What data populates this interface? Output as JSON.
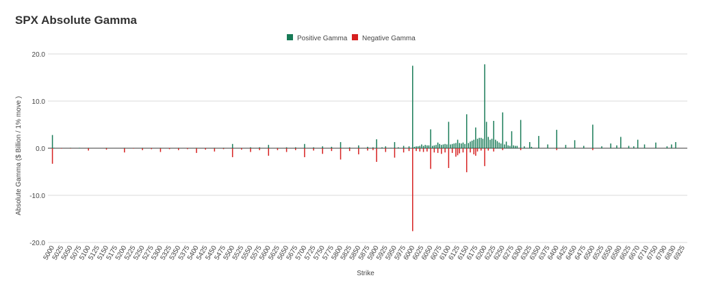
{
  "chart_data": {
    "type": "bar",
    "title": "SPX Absolute Gamma",
    "xlabel": "Strike",
    "ylabel": "Absolute Gamma ($ Billion / 1% move )",
    "ylim": [
      -20,
      20
    ],
    "yticks": [
      "20.0",
      "10.0",
      "0.0",
      "-10.0",
      "-20.0"
    ],
    "ytick_values": [
      20,
      10,
      0,
      -10,
      -20
    ],
    "grid": true,
    "legend_position": "top-center",
    "xtick_labels": [
      "5000",
      "5025",
      "5050",
      "5075",
      "5100",
      "5125",
      "5150",
      "5175",
      "5200",
      "5225",
      "5250",
      "5275",
      "5300",
      "5325",
      "5350",
      "5375",
      "5400",
      "5425",
      "5450",
      "5475",
      "5500",
      "5525",
      "5550",
      "5575",
      "5600",
      "5625",
      "5650",
      "5675",
      "5700",
      "5725",
      "5750",
      "5775",
      "5800",
      "5825",
      "5850",
      "5875",
      "5900",
      "5925",
      "5950",
      "5975",
      "6000",
      "6025",
      "6050",
      "6075",
      "6100",
      "6125",
      "6150",
      "6175",
      "6200",
      "6225",
      "6250",
      "6275",
      "6300",
      "6325",
      "6350",
      "6375",
      "6400",
      "6425",
      "6450",
      "6475",
      "6500",
      "6525",
      "6550",
      "6580",
      "6625",
      "6670",
      "6710",
      "6750",
      "6790",
      "6830",
      "6925"
    ],
    "series": [
      {
        "name": "Positive Gamma",
        "color": "#177a56",
        "values": [
          [
            5000,
            2.8
          ],
          [
            5005,
            0.1
          ],
          [
            5050,
            0.1
          ],
          [
            5075,
            0.1
          ],
          [
            5100,
            0.1
          ],
          [
            5150,
            0.1
          ],
          [
            5200,
            0.1
          ],
          [
            5250,
            0.1
          ],
          [
            5300,
            0.1
          ],
          [
            5350,
            0.1
          ],
          [
            5400,
            0.1
          ],
          [
            5450,
            0.1
          ],
          [
            5475,
            0.1
          ],
          [
            5500,
            0.9
          ],
          [
            5550,
            0.2
          ],
          [
            5575,
            0.2
          ],
          [
            5600,
            0.7
          ],
          [
            5625,
            0.1
          ],
          [
            5650,
            0.2
          ],
          [
            5675,
            0.2
          ],
          [
            5700,
            0.9
          ],
          [
            5725,
            0.2
          ],
          [
            5750,
            0.4
          ],
          [
            5775,
            0.3
          ],
          [
            5800,
            1.3
          ],
          [
            5825,
            0.2
          ],
          [
            5850,
            0.6
          ],
          [
            5875,
            0.3
          ],
          [
            5890,
            0.2
          ],
          [
            5900,
            1.9
          ],
          [
            5915,
            0.2
          ],
          [
            5925,
            0.4
          ],
          [
            5940,
            0.1
          ],
          [
            5950,
            1.3
          ],
          [
            5960,
            0.2
          ],
          [
            5975,
            0.5
          ],
          [
            5980,
            0.1
          ],
          [
            5990,
            0.4
          ],
          [
            6000,
            17.5
          ],
          [
            6005,
            0.3
          ],
          [
            6010,
            0.4
          ],
          [
            6015,
            0.4
          ],
          [
            6020,
            0.5
          ],
          [
            6025,
            0.8
          ],
          [
            6030,
            0.5
          ],
          [
            6035,
            0.7
          ],
          [
            6040,
            0.6
          ],
          [
            6045,
            0.6
          ],
          [
            6050,
            4.0
          ],
          [
            6055,
            0.5
          ],
          [
            6060,
            0.6
          ],
          [
            6065,
            0.7
          ],
          [
            6070,
            1.2
          ],
          [
            6075,
            0.9
          ],
          [
            6080,
            0.7
          ],
          [
            6085,
            0.8
          ],
          [
            6090,
            0.9
          ],
          [
            6095,
            0.8
          ],
          [
            6100,
            5.6
          ],
          [
            6105,
            0.8
          ],
          [
            6110,
            0.9
          ],
          [
            6115,
            1.0
          ],
          [
            6120,
            1.1
          ],
          [
            6125,
            1.8
          ],
          [
            6130,
            1.1
          ],
          [
            6135,
            1.0
          ],
          [
            6140,
            1.2
          ],
          [
            6145,
            0.9
          ],
          [
            6150,
            7.2
          ],
          [
            6155,
            1.1
          ],
          [
            6160,
            1.4
          ],
          [
            6165,
            1.6
          ],
          [
            6170,
            1.8
          ],
          [
            6175,
            4.4
          ],
          [
            6180,
            2.0
          ],
          [
            6185,
            2.2
          ],
          [
            6190,
            2.2
          ],
          [
            6195,
            2.0
          ],
          [
            6200,
            17.8
          ],
          [
            6205,
            5.6
          ],
          [
            6210,
            2.4
          ],
          [
            6215,
            1.8
          ],
          [
            6220,
            2.0
          ],
          [
            6225,
            5.8
          ],
          [
            6230,
            1.8
          ],
          [
            6235,
            1.5
          ],
          [
            6240,
            1.2
          ],
          [
            6245,
            1.0
          ],
          [
            6250,
            7.6
          ],
          [
            6255,
            0.8
          ],
          [
            6260,
            1.4
          ],
          [
            6265,
            0.6
          ],
          [
            6270,
            0.5
          ],
          [
            6275,
            3.6
          ],
          [
            6280,
            0.6
          ],
          [
            6285,
            0.5
          ],
          [
            6290,
            0.5
          ],
          [
            6300,
            6.0
          ],
          [
            6310,
            0.4
          ],
          [
            6325,
            1.3
          ],
          [
            6330,
            0.3
          ],
          [
            6350,
            2.6
          ],
          [
            6375,
            0.8
          ],
          [
            6400,
            3.9
          ],
          [
            6425,
            0.7
          ],
          [
            6450,
            1.7
          ],
          [
            6475,
            0.5
          ],
          [
            6500,
            5.0
          ],
          [
            6525,
            0.4
          ],
          [
            6550,
            1.0
          ],
          [
            6570,
            0.6
          ],
          [
            6585,
            2.4
          ],
          [
            6625,
            0.5
          ],
          [
            6650,
            0.4
          ],
          [
            6670,
            1.8
          ],
          [
            6700,
            0.8
          ],
          [
            6750,
            1.2
          ],
          [
            6800,
            0.4
          ],
          [
            6820,
            0.8
          ],
          [
            6850,
            1.3
          ]
        ]
      },
      {
        "name": "Negative Gamma",
        "color": "#d61f1f",
        "values": [
          [
            5000,
            -3.3
          ],
          [
            5025,
            -0.1
          ],
          [
            5050,
            -0.1
          ],
          [
            5100,
            -0.5
          ],
          [
            5150,
            -0.3
          ],
          [
            5200,
            -0.9
          ],
          [
            5225,
            -0.1
          ],
          [
            5250,
            -0.4
          ],
          [
            5275,
            -0.2
          ],
          [
            5300,
            -0.8
          ],
          [
            5325,
            -0.2
          ],
          [
            5350,
            -0.4
          ],
          [
            5375,
            -0.2
          ],
          [
            5400,
            -1.0
          ],
          [
            5425,
            -0.3
          ],
          [
            5450,
            -0.7
          ],
          [
            5475,
            -0.2
          ],
          [
            5500,
            -1.9
          ],
          [
            5525,
            -0.3
          ],
          [
            5550,
            -0.8
          ],
          [
            5575,
            -0.4
          ],
          [
            5600,
            -1.6
          ],
          [
            5625,
            -0.4
          ],
          [
            5650,
            -0.8
          ],
          [
            5675,
            -0.4
          ],
          [
            5700,
            -1.9
          ],
          [
            5725,
            -0.5
          ],
          [
            5750,
            -1.2
          ],
          [
            5775,
            -0.6
          ],
          [
            5800,
            -2.4
          ],
          [
            5825,
            -0.6
          ],
          [
            5850,
            -1.3
          ],
          [
            5875,
            -0.5
          ],
          [
            5890,
            -0.4
          ],
          [
            5900,
            -2.9
          ],
          [
            5925,
            -0.8
          ],
          [
            5950,
            -2.0
          ],
          [
            5975,
            -0.9
          ],
          [
            5990,
            -0.6
          ],
          [
            6000,
            -17.6
          ],
          [
            6010,
            -0.6
          ],
          [
            6020,
            -0.7
          ],
          [
            6030,
            -0.8
          ],
          [
            6040,
            -0.7
          ],
          [
            6050,
            -4.4
          ],
          [
            6060,
            -0.9
          ],
          [
            6070,
            -1.0
          ],
          [
            6080,
            -1.2
          ],
          [
            6090,
            -0.9
          ],
          [
            6100,
            -4.2
          ],
          [
            6110,
            -1.0
          ],
          [
            6120,
            -1.8
          ],
          [
            6125,
            -1.5
          ],
          [
            6130,
            -1.1
          ],
          [
            6140,
            -0.9
          ],
          [
            6150,
            -5.1
          ],
          [
            6160,
            -0.9
          ],
          [
            6170,
            -1.3
          ],
          [
            6175,
            -1.6
          ],
          [
            6180,
            -0.7
          ],
          [
            6190,
            -0.5
          ],
          [
            6200,
            -3.8
          ],
          [
            6210,
            -0.5
          ],
          [
            6225,
            -0.7
          ],
          [
            6250,
            -0.4
          ],
          [
            6300,
            -0.4
          ],
          [
            6400,
            -0.4
          ],
          [
            6500,
            -0.4
          ]
        ]
      }
    ]
  }
}
